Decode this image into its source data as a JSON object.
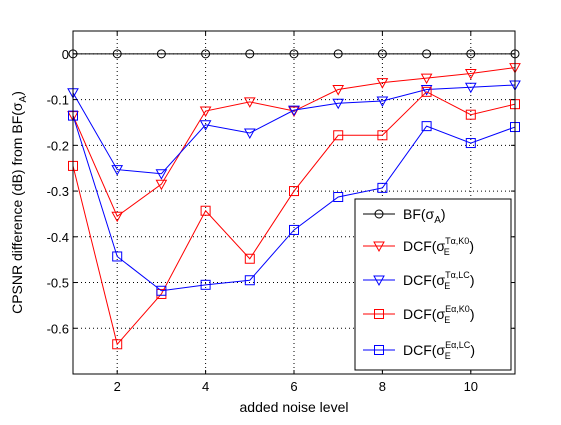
{
  "chart_data": {
    "type": "line",
    "title": "",
    "xlabel": "added noise level",
    "ylabel": "CPSNR difference (dB) from BF(σA)",
    "xlim": [
      1,
      11
    ],
    "ylim": [
      -0.7,
      0.05
    ],
    "xticks": [
      2,
      4,
      6,
      8,
      10
    ],
    "yticks": [
      0,
      -0.1,
      -0.2,
      -0.3,
      -0.4,
      -0.5,
      -0.6
    ],
    "ytick_labels": [
      "0",
      "-0.1",
      "-0.2",
      "-0.3",
      "-0.4",
      "-0.5",
      "-0.6"
    ],
    "grid": true,
    "legend_position": "lower-right",
    "x": [
      1,
      2,
      3,
      4,
      5,
      6,
      7,
      8,
      9,
      10,
      11
    ],
    "series": [
      {
        "name": "BF(σA)",
        "legend": {
          "base": "BF(σ",
          "sub": "A",
          "sup": "",
          "close": ")"
        },
        "color": "#000000",
        "marker": "circle",
        "values": [
          0,
          0,
          0,
          0,
          0,
          0,
          0,
          0,
          0,
          0,
          0
        ]
      },
      {
        "name": "DCF(σE Tα,K0)",
        "legend": {
          "base": "DCF(σ",
          "sub": "E",
          "sup": "Tα,K0",
          "close": ")"
        },
        "color": "#ff0000",
        "marker": "triangle-down",
        "values": [
          -0.135,
          -0.355,
          -0.285,
          -0.125,
          -0.105,
          -0.125,
          -0.078,
          -0.063,
          -0.053,
          -0.043,
          -0.03
        ]
      },
      {
        "name": "DCF(σE Tα,LC)",
        "legend": {
          "base": "DCF(σ",
          "sub": "E",
          "sup": "Tα,LC",
          "close": ")"
        },
        "color": "#0000ff",
        "marker": "triangle-down",
        "values": [
          -0.085,
          -0.253,
          -0.262,
          -0.155,
          -0.173,
          -0.123,
          -0.108,
          -0.103,
          -0.078,
          -0.073,
          -0.068
        ]
      },
      {
        "name": "DCF(σE Eα,K0)",
        "legend": {
          "base": "DCF(σ",
          "sub": "E",
          "sup": "Eα,K0",
          "close": ")"
        },
        "color": "#ff0000",
        "marker": "square",
        "values": [
          -0.245,
          -0.635,
          -0.525,
          -0.343,
          -0.448,
          -0.3,
          -0.178,
          -0.178,
          -0.083,
          -0.133,
          -0.11
        ]
      },
      {
        "name": "DCF(σE Eα,LC)",
        "legend": {
          "base": "DCF(σ",
          "sub": "E",
          "sup": "Eα,LC",
          "close": ")"
        },
        "color": "#0000ff",
        "marker": "square",
        "values": [
          -0.135,
          -0.443,
          -0.518,
          -0.505,
          -0.495,
          -0.385,
          -0.313,
          -0.293,
          -0.158,
          -0.195,
          -0.16
        ]
      }
    ]
  }
}
